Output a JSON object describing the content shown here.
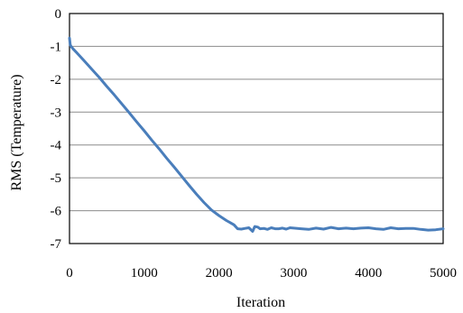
{
  "chart_data": {
    "type": "line",
    "title": "",
    "xlabel": "Iteration",
    "ylabel": "RMS (Temperature)",
    "xlim": [
      0,
      5000
    ],
    "ylim": [
      -7,
      0
    ],
    "xticks": [
      0,
      1000,
      2000,
      3000,
      4000,
      5000
    ],
    "xtick_labels": [
      "0",
      "1000",
      "2000",
      "3000",
      "4000",
      "5000"
    ],
    "yticks": [
      0,
      -1,
      -2,
      -3,
      -4,
      -5,
      -6,
      -7
    ],
    "ytick_labels": [
      "0",
      "-1",
      "-2",
      "-3",
      "-4",
      "-5",
      "-6",
      "-7"
    ],
    "grid": {
      "horizontal": true,
      "vertical": false
    },
    "legend": "none",
    "series": [
      {
        "color": "#4a7ebb",
        "x": [
          0,
          10,
          20,
          50,
          100,
          200,
          300,
          400,
          500,
          600,
          700,
          800,
          900,
          1000,
          1100,
          1200,
          1300,
          1400,
          1500,
          1600,
          1700,
          1800,
          1900,
          2000,
          2100,
          2200,
          2250,
          2300,
          2350,
          2400,
          2450,
          2480,
          2520,
          2550,
          2600,
          2650,
          2700,
          2750,
          2800,
          2850,
          2900,
          2950,
          3000,
          3100,
          3200,
          3300,
          3400,
          3500,
          3600,
          3700,
          3800,
          3900,
          4000,
          4100,
          4200,
          4300,
          4400,
          4500,
          4600,
          4700,
          4800,
          4900,
          5000
        ],
        "values": [
          -0.75,
          -0.95,
          -1.0,
          -1.08,
          -1.2,
          -1.45,
          -1.7,
          -1.95,
          -2.22,
          -2.48,
          -2.75,
          -3.02,
          -3.3,
          -3.57,
          -3.85,
          -4.12,
          -4.4,
          -4.67,
          -4.95,
          -5.23,
          -5.5,
          -5.75,
          -5.98,
          -6.15,
          -6.3,
          -6.43,
          -6.55,
          -6.56,
          -6.54,
          -6.52,
          -6.63,
          -6.48,
          -6.5,
          -6.55,
          -6.54,
          -6.57,
          -6.52,
          -6.55,
          -6.55,
          -6.53,
          -6.56,
          -6.52,
          -6.53,
          -6.55,
          -6.57,
          -6.53,
          -6.56,
          -6.51,
          -6.55,
          -6.53,
          -6.55,
          -6.53,
          -6.52,
          -6.55,
          -6.57,
          -6.52,
          -6.55,
          -6.54,
          -6.54,
          -6.57,
          -6.59,
          -6.58,
          -6.55
        ]
      }
    ]
  }
}
